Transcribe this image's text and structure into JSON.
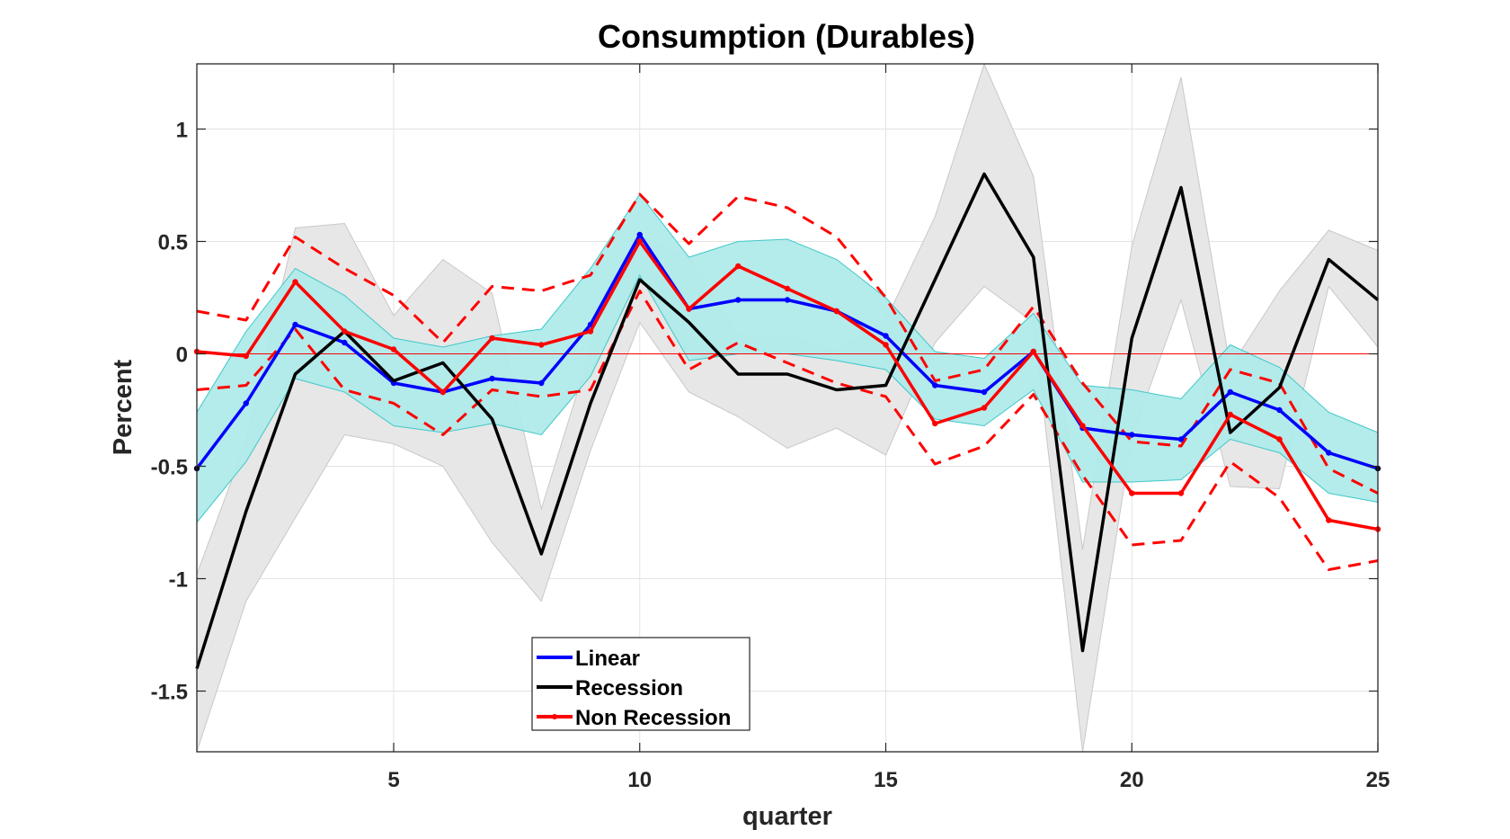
{
  "chart_data": {
    "type": "line",
    "title": "Consumption (Durables)",
    "xlabel": "quarter",
    "ylabel": "Percent",
    "xlim": [
      1,
      25
    ],
    "ylim": [
      -1.77,
      1.29
    ],
    "xticks": [
      5,
      10,
      15,
      20,
      25
    ],
    "yticks": [
      -1.5,
      -1,
      -0.5,
      0,
      0.5,
      1
    ],
    "ytick_labels": [
      "-1.5",
      "-1",
      "-0.5",
      "0",
      "0.5",
      "1"
    ],
    "grid": true,
    "zero_line": true,
    "x": [
      1,
      2,
      3,
      4,
      5,
      6,
      7,
      8,
      9,
      10,
      11,
      12,
      13,
      14,
      15,
      16,
      17,
      18,
      19,
      20,
      21,
      22,
      23,
      24,
      25
    ],
    "series": [
      {
        "name": "Linear",
        "color": "#0000ff",
        "marker": true,
        "values": [
          -0.51,
          -0.22,
          0.13,
          0.05,
          -0.13,
          -0.17,
          -0.11,
          -0.13,
          0.13,
          0.53,
          0.2,
          0.24,
          0.24,
          0.19,
          0.08,
          -0.14,
          -0.17,
          0.01,
          -0.33,
          -0.36,
          -0.38,
          -0.17,
          -0.25,
          -0.44,
          -0.51
        ],
        "band": {
          "color": "#b0eaea",
          "edge": "#40c8c8",
          "upper": [
            -0.26,
            0.1,
            0.38,
            0.26,
            0.07,
            0.03,
            0.08,
            0.11,
            0.38,
            0.71,
            0.43,
            0.5,
            0.51,
            0.42,
            0.25,
            0.01,
            -0.02,
            0.18,
            -0.14,
            -0.16,
            -0.2,
            0.04,
            -0.06,
            -0.26,
            -0.35
          ],
          "lower": [
            -0.75,
            -0.48,
            -0.11,
            -0.17,
            -0.32,
            -0.35,
            -0.31,
            -0.36,
            -0.1,
            0.35,
            -0.03,
            0.0,
            0.0,
            -0.03,
            -0.07,
            -0.29,
            -0.32,
            -0.16,
            -0.57,
            -0.57,
            -0.56,
            -0.38,
            -0.44,
            -0.62,
            -0.66
          ]
        }
      },
      {
        "name": "Recession",
        "color": "#000000",
        "marker": false,
        "values": [
          -1.4,
          -0.7,
          -0.09,
          0.1,
          -0.12,
          -0.04,
          -0.29,
          -0.89,
          -0.22,
          0.33,
          0.14,
          -0.09,
          -0.09,
          -0.16,
          -0.14,
          0.33,
          0.8,
          0.43,
          -1.32,
          0.07,
          0.74,
          -0.35,
          -0.15,
          0.42,
          0.24
        ],
        "band": {
          "color": "#e6e6e6",
          "edge": "#c8c8c8",
          "upper": [
            -0.98,
            -0.39,
            0.56,
            0.58,
            0.17,
            0.42,
            0.27,
            -0.69,
            0.02,
            0.52,
            0.43,
            0.08,
            0.08,
            0.01,
            0.15,
            0.61,
            1.29,
            0.79,
            -0.87,
            0.48,
            1.23,
            -0.06,
            0.28,
            0.55,
            0.46
          ],
          "lower": [
            -1.77,
            -1.1,
            -0.73,
            -0.36,
            -0.4,
            -0.5,
            -0.84,
            -1.1,
            -0.43,
            0.14,
            -0.17,
            -0.28,
            -0.42,
            -0.33,
            -0.45,
            0.05,
            0.3,
            0.14,
            -1.77,
            -0.37,
            0.24,
            -0.59,
            -0.6,
            0.3,
            0.03
          ]
        }
      },
      {
        "name": "Non Recession",
        "color": "#ff0000",
        "marker": true,
        "values": [
          0.01,
          -0.01,
          0.32,
          0.1,
          0.02,
          -0.17,
          0.07,
          0.04,
          0.1,
          0.5,
          0.2,
          0.39,
          0.29,
          0.19,
          0.04,
          -0.31,
          -0.24,
          0.01,
          -0.32,
          -0.62,
          -0.62,
          -0.27,
          -0.38,
          -0.74,
          -0.78
        ],
        "bounds": {
          "style": "dashed",
          "upper": [
            0.19,
            0.15,
            0.52,
            0.38,
            0.26,
            0.05,
            0.3,
            0.28,
            0.35,
            0.71,
            0.49,
            0.7,
            0.65,
            0.52,
            0.25,
            -0.12,
            -0.07,
            0.21,
            -0.13,
            -0.39,
            -0.41,
            -0.07,
            -0.13,
            -0.51,
            -0.62
          ],
          "lower": [
            -0.16,
            -0.14,
            0.11,
            -0.16,
            -0.22,
            -0.36,
            -0.16,
            -0.19,
            -0.16,
            0.28,
            -0.07,
            0.05,
            -0.04,
            -0.13,
            -0.19,
            -0.49,
            -0.41,
            -0.18,
            -0.54,
            -0.85,
            -0.83,
            -0.48,
            -0.64,
            -0.96,
            -0.92
          ]
        }
      }
    ],
    "legend": {
      "position": "bottom-center",
      "entries": [
        "Linear",
        "Recession",
        "Non Recession"
      ]
    }
  }
}
